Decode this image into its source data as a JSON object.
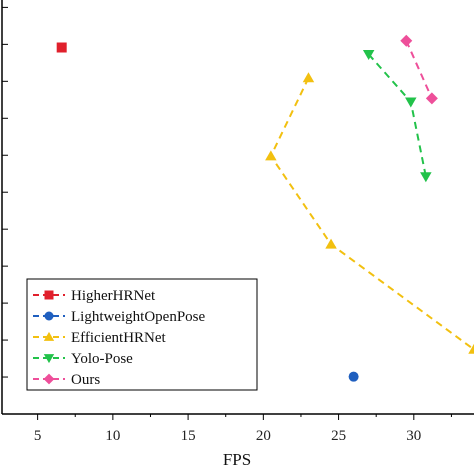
{
  "chart_data": {
    "type": "scatter",
    "xlabel": "FPS",
    "ylabel": "",
    "xlim": [
      2.5,
      34
    ],
    "ylim": [
      0,
      12.2
    ],
    "xticks": [
      5,
      10,
      15,
      20,
      25,
      30
    ],
    "yticks_count": 11,
    "grid": false,
    "legend_position": "bottom-left",
    "series": [
      {
        "name": "HigherHRNet",
        "marker": "square",
        "color": "#e0202c",
        "connected": false,
        "x": [
          6.6
        ],
        "y": [
          10.8
        ]
      },
      {
        "name": "LightweightOpenPose",
        "marker": "circle",
        "color": "#1f5fbf",
        "connected": false,
        "x": [
          26.0
        ],
        "y": [
          1.1
        ]
      },
      {
        "name": "EfficientHRNet",
        "marker": "triangle-up",
        "color": "#f2c010",
        "connected": true,
        "x": [
          23.0,
          20.5,
          24.5,
          34.0
        ],
        "y": [
          9.9,
          7.6,
          5.0,
          1.9
        ]
      },
      {
        "name": "Yolo-Pose",
        "marker": "triangle-down",
        "color": "#22c24a",
        "connected": true,
        "x": [
          27.0,
          29.8,
          30.8
        ],
        "y": [
          10.6,
          9.2,
          7.0
        ]
      },
      {
        "name": "Ours",
        "marker": "diamond",
        "color": "#ee4f9a",
        "connected": true,
        "x": [
          29.5,
          31.2
        ],
        "y": [
          11.0,
          9.3
        ]
      }
    ]
  }
}
